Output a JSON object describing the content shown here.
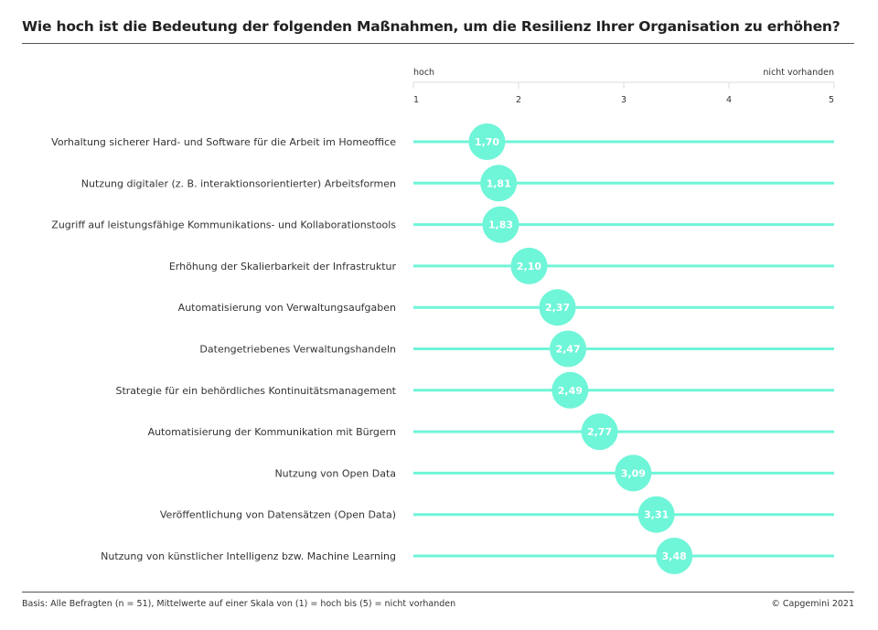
{
  "title": "Wie hoch ist die Bedeutung der folgenden Maßnahmen, um die Resilienz Ihrer Organisation zu erhöhen?",
  "footer": {
    "basis": "Basis: Alle Befragten (n = 51), Mittelwerte auf einer Skala von (1) = hoch bis (5) = nicht vorhanden",
    "copyright": "© Capgemini 2021"
  },
  "colors": {
    "accent": "#6ff5d8",
    "axis": "#dddddd",
    "text": "#333333"
  },
  "chart_data": {
    "type": "scatter",
    "title": "Wie hoch ist die Bedeutung der folgenden Maßnahmen, um die Resilienz Ihrer Organisation zu erhöhen?",
    "xlim": [
      1,
      5
    ],
    "x_ticks": [
      "1",
      "2",
      "3",
      "4",
      "5"
    ],
    "x_label_left": "hoch",
    "x_label_right": "nicht vorhanden",
    "grid": false,
    "categories": [
      "Vorhaltung sicherer Hard- und Software für die Arbeit im  Homeoffice",
      "Nutzung digitaler (z. B. interaktionsorientierter) Arbeitsformen",
      "Zugriff auf leistungsfähige Kommunikations- und Kollaborationstools",
      "Erhöhung der Skalierbarkeit der Infrastruktur",
      "Automatisierung von Verwaltungsaufgaben",
      "Datengetriebenes Verwaltungshandeln",
      "Strategie für ein behördliches Kontinuitätsmanagement",
      "Automatisierung der Kommunikation mit Bürgern",
      "Nutzung von Open Data",
      "Veröffentlichung von Datensätzen (Open Data)",
      "Nutzung von künstlicher Intelligenz bzw. Machine Learning"
    ],
    "values": [
      1.7,
      1.81,
      1.83,
      2.1,
      2.37,
      2.47,
      2.49,
      2.77,
      3.09,
      3.31,
      3.48
    ],
    "value_labels": [
      "1,70",
      "1,81",
      "1,83",
      "2,10",
      "2,37",
      "2,47",
      "2,49",
      "2,77",
      "3,09",
      "3,31",
      "3,48"
    ]
  }
}
